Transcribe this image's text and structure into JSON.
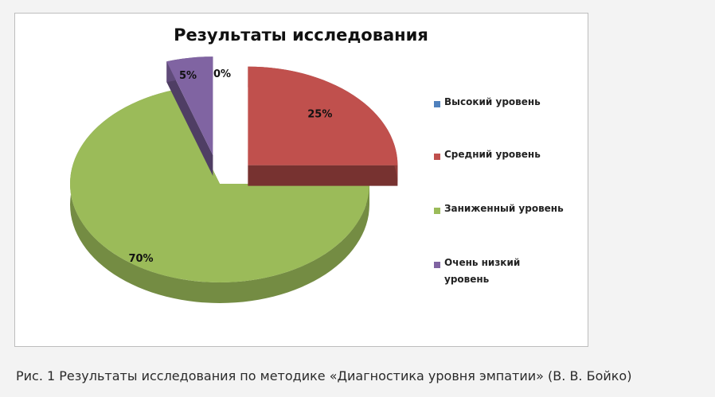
{
  "chart_data": {
    "type": "pie",
    "title": "Результаты исследования",
    "categories": [
      "Высокий уровень",
      "Средний уровень",
      "Заниженный уровень",
      "Очень низкий уровень"
    ],
    "values": [
      0,
      25,
      70,
      5
    ],
    "data_labels": [
      "0%",
      "25%",
      "70%",
      "5%"
    ],
    "colors": [
      "#4f81bd",
      "#c0504d",
      "#9bbb59",
      "#8064a2"
    ],
    "three_d": true,
    "exploded": true,
    "legend_position": "right"
  },
  "caption": "Рис. 1 Результаты исследования по методике «Диагностика уровня эмпатии» (В. В. Бойко)"
}
